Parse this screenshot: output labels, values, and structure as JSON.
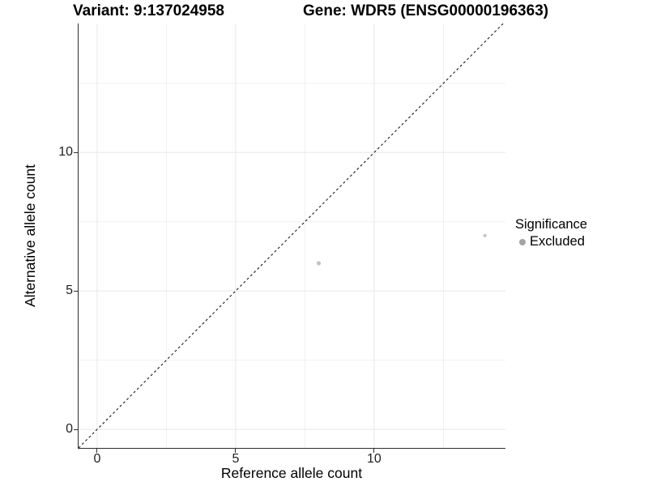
{
  "figure": {
    "title_variant": "Variant: 9:137024958",
    "title_gene": "Gene: WDR5 (ENSG00000196363)"
  },
  "legend": {
    "title": "Significance",
    "items": [
      {
        "label": "Excluded",
        "color": "#a3a3a3"
      }
    ],
    "position": "right"
  },
  "chart_data": {
    "type": "scatter",
    "title": "Variant: 9:137024958 / Gene: WDR5 (ENSG00000196363)",
    "xlabel": "Reference allele count",
    "ylabel": "Alternative allele count",
    "xlim": [
      -0.67,
      14.74
    ],
    "ylim": [
      -0.67,
      14.66
    ],
    "x_ticks": [
      0,
      5,
      10
    ],
    "y_ticks": [
      0,
      5,
      10
    ],
    "minor_grid_x": [
      2.5,
      7.5,
      12.5
    ],
    "minor_grid_y": [
      2.5,
      7.5,
      12.5
    ],
    "grid": true,
    "identity_line": {
      "equation": "y = x",
      "style": "dashed",
      "color": "#1a1a1a"
    },
    "series": [
      {
        "name": "Excluded",
        "point_color": "#c4c4c4",
        "points": [
          {
            "x": 8,
            "y": 6,
            "r": 2.6
          },
          {
            "x": 14,
            "y": 7,
            "r": 2.1
          }
        ]
      }
    ],
    "colors": {
      "major_grid": "#e7e7e7",
      "minor_grid": "#f0f0f0",
      "axis_line": "#2e2e2e"
    }
  }
}
